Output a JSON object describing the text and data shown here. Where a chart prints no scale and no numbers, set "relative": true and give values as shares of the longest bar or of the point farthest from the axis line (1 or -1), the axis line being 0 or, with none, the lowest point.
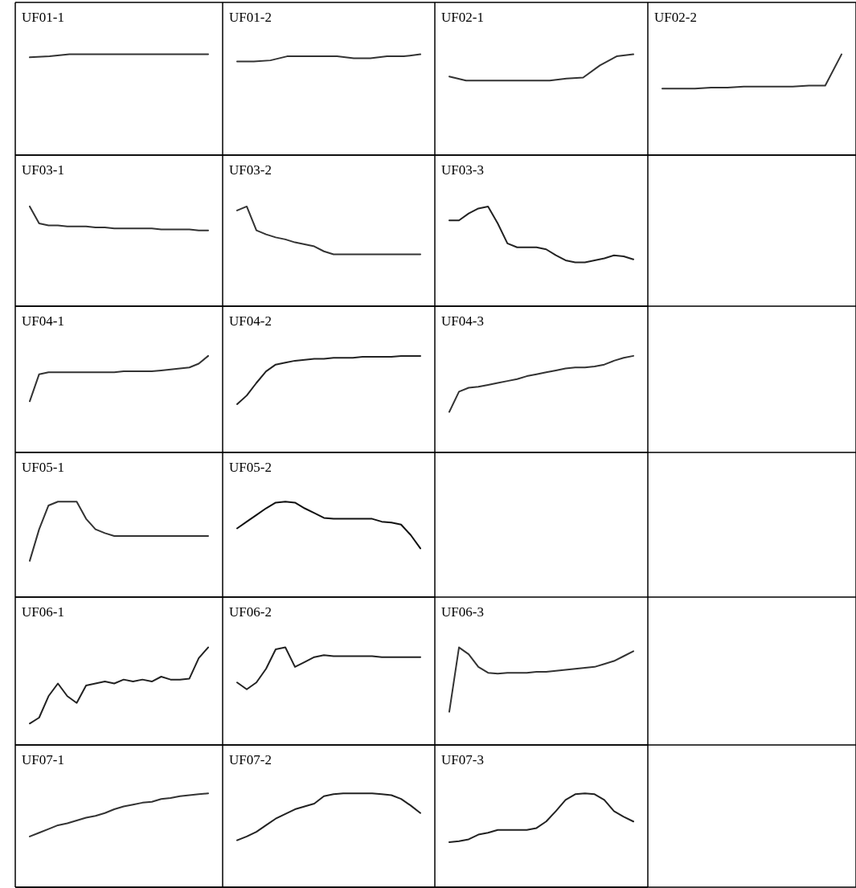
{
  "chart_data": [
    {
      "type": "line",
      "title": "UF01-1",
      "relative": true,
      "color": "#333333",
      "categories": [
        null,
        null,
        null,
        null,
        null,
        null,
        null,
        null,
        null,
        null
      ],
      "values": [
        0.97,
        0.98,
        1,
        1,
        1,
        1,
        1,
        1,
        1,
        1
      ]
    },
    {
      "type": "line",
      "title": "UF01-2",
      "relative": true,
      "color": "#333333",
      "categories": [
        null,
        null,
        null,
        null,
        null,
        null,
        null,
        null,
        null,
        null,
        null,
        null
      ],
      "values": [
        0.93,
        0.93,
        0.94,
        0.98,
        0.98,
        0.98,
        0.98,
        0.96,
        0.96,
        0.98,
        0.98,
        1
      ]
    },
    {
      "type": "line",
      "title": "UF02-1",
      "relative": true,
      "color": "#333333",
      "categories": [
        null,
        null,
        null,
        null,
        null,
        null,
        null,
        null,
        null,
        null,
        null,
        null
      ],
      "values": [
        0.78,
        0.74,
        0.74,
        0.74,
        0.74,
        0.74,
        0.74,
        0.76,
        0.77,
        0.89,
        0.98,
        1
      ]
    },
    {
      "type": "line",
      "title": "UF02-2",
      "relative": true,
      "color": "#333333",
      "categories": [
        null,
        null,
        null,
        null,
        null,
        null,
        null,
        null,
        null,
        null,
        null,
        null
      ],
      "values": [
        0.66,
        0.66,
        0.66,
        0.67,
        0.67,
        0.68,
        0.68,
        0.68,
        0.68,
        0.69,
        0.69,
        1
      ]
    },
    {
      "type": "line",
      "title": "UF03-1",
      "relative": true,
      "color": "#333333",
      "categories": [
        null,
        null,
        null,
        null,
        null,
        null,
        null,
        null,
        null,
        null,
        null,
        null,
        null,
        null,
        null,
        null,
        null,
        null,
        null,
        null
      ],
      "values": [
        1,
        0.83,
        0.81,
        0.81,
        0.8,
        0.8,
        0.8,
        0.79,
        0.79,
        0.78,
        0.78,
        0.78,
        0.78,
        0.78,
        0.77,
        0.77,
        0.77,
        0.77,
        0.76,
        0.76
      ]
    },
    {
      "type": "line",
      "title": "UF03-2",
      "relative": true,
      "color": "#333333",
      "categories": [
        null,
        null,
        null,
        null,
        null,
        null,
        null,
        null,
        null,
        null,
        null,
        null,
        null,
        null,
        null,
        null,
        null,
        null,
        null,
        null
      ],
      "values": [
        0.96,
        1,
        0.76,
        0.72,
        0.69,
        0.67,
        0.64,
        0.62,
        0.6,
        0.55,
        0.52,
        0.52,
        0.52,
        0.52,
        0.52,
        0.52,
        0.52,
        0.52,
        0.52,
        0.52
      ]
    },
    {
      "type": "line",
      "title": "UF03-3",
      "relative": true,
      "color": "#222222",
      "categories": [
        null,
        null,
        null,
        null,
        null,
        null,
        null,
        null,
        null,
        null,
        null,
        null,
        null,
        null,
        null,
        null,
        null,
        null,
        null,
        null
      ],
      "values": [
        0.86,
        0.86,
        0.93,
        0.98,
        1,
        0.83,
        0.63,
        0.59,
        0.59,
        0.59,
        0.57,
        0.51,
        0.46,
        0.44,
        0.44,
        0.46,
        0.48,
        0.51,
        0.5,
        0.47
      ]
    },
    {
      "type": "line",
      "title": "UF04-1",
      "relative": true,
      "color": "#333333",
      "categories": [
        null,
        null,
        null,
        null,
        null,
        null,
        null,
        null,
        null,
        null,
        null,
        null,
        null,
        null,
        null,
        null,
        null,
        null,
        null,
        null
      ],
      "values": [
        0.53,
        0.81,
        0.83,
        0.83,
        0.83,
        0.83,
        0.83,
        0.83,
        0.83,
        0.83,
        0.84,
        0.84,
        0.84,
        0.84,
        0.85,
        0.86,
        0.87,
        0.88,
        0.92,
        1
      ]
    },
    {
      "type": "line",
      "title": "UF04-2",
      "relative": true,
      "color": "#222222",
      "categories": [
        null,
        null,
        null,
        null,
        null,
        null,
        null,
        null,
        null,
        null,
        null,
        null,
        null,
        null,
        null,
        null,
        null,
        null,
        null,
        null
      ],
      "values": [
        0.5,
        0.59,
        0.72,
        0.84,
        0.91,
        0.93,
        0.95,
        0.96,
        0.97,
        0.97,
        0.98,
        0.98,
        0.98,
        0.99,
        0.99,
        0.99,
        0.99,
        1,
        1,
        1
      ]
    },
    {
      "type": "line",
      "title": "UF04-3",
      "relative": true,
      "color": "#333333",
      "categories": [
        null,
        null,
        null,
        null,
        null,
        null,
        null,
        null,
        null,
        null,
        null,
        null,
        null,
        null,
        null,
        null,
        null,
        null,
        null,
        null
      ],
      "values": [
        0.42,
        0.63,
        0.67,
        0.68,
        0.7,
        0.72,
        0.74,
        0.76,
        0.79,
        0.81,
        0.83,
        0.85,
        0.87,
        0.88,
        0.88,
        0.89,
        0.91,
        0.95,
        0.98,
        1
      ]
    },
    {
      "type": "line",
      "title": "UF05-1",
      "relative": true,
      "color": "#333333",
      "categories": [
        null,
        null,
        null,
        null,
        null,
        null,
        null,
        null,
        null,
        null,
        null,
        null,
        null,
        null,
        null,
        null,
        null,
        null,
        null,
        null
      ],
      "values": [
        0.38,
        0.71,
        0.96,
        1,
        1,
        1,
        0.82,
        0.71,
        0.67,
        0.64,
        0.64,
        0.64,
        0.64,
        0.64,
        0.64,
        0.64,
        0.64,
        0.64,
        0.64,
        0.64
      ]
    },
    {
      "type": "line",
      "title": "UF05-2",
      "relative": true,
      "color": "#111111",
      "categories": [
        null,
        null,
        null,
        null,
        null,
        null,
        null,
        null,
        null,
        null,
        null,
        null,
        null,
        null,
        null,
        null,
        null,
        null,
        null,
        null
      ],
      "values": [
        0.72,
        0.79,
        0.86,
        0.93,
        0.99,
        1,
        0.99,
        0.93,
        0.88,
        0.83,
        0.82,
        0.82,
        0.82,
        0.82,
        0.82,
        0.79,
        0.78,
        0.76,
        0.65,
        0.51
      ]
    },
    {
      "type": "line",
      "title": "UF06-1",
      "relative": true,
      "color": "#222222",
      "categories": [
        null,
        null,
        null,
        null,
        null,
        null,
        null,
        null,
        null,
        null,
        null,
        null,
        null,
        null,
        null,
        null,
        null,
        null,
        null,
        null
      ],
      "values": [
        0.22,
        0.28,
        0.5,
        0.63,
        0.5,
        0.43,
        0.61,
        0.63,
        0.65,
        0.63,
        0.67,
        0.65,
        0.67,
        0.65,
        0.7,
        0.67,
        0.67,
        0.68,
        0.89,
        1
      ]
    },
    {
      "type": "line",
      "title": "UF06-2",
      "relative": true,
      "color": "#222222",
      "categories": [
        null,
        null,
        null,
        null,
        null,
        null,
        null,
        null,
        null,
        null,
        null,
        null,
        null,
        null,
        null,
        null,
        null,
        null,
        null,
        null
      ],
      "values": [
        0.64,
        0.57,
        0.64,
        0.78,
        0.98,
        1,
        0.8,
        0.85,
        0.9,
        0.92,
        0.91,
        0.91,
        0.91,
        0.91,
        0.91,
        0.9,
        0.9,
        0.9,
        0.9,
        0.9
      ]
    },
    {
      "type": "line",
      "title": "UF06-3",
      "relative": true,
      "color": "#333333",
      "categories": [
        null,
        null,
        null,
        null,
        null,
        null,
        null,
        null,
        null,
        null,
        null,
        null,
        null,
        null,
        null,
        null,
        null,
        null,
        null,
        null
      ],
      "values": [
        0.34,
        1,
        0.93,
        0.8,
        0.74,
        0.73,
        0.74,
        0.74,
        0.74,
        0.75,
        0.75,
        0.76,
        0.77,
        0.78,
        0.79,
        0.8,
        0.83,
        0.86,
        0.91,
        0.96
      ]
    },
    {
      "type": "line",
      "title": "UF07-1",
      "relative": true,
      "color": "#333333",
      "categories": [
        null,
        null,
        null,
        null,
        null,
        null,
        null,
        null,
        null,
        null,
        null,
        null,
        null,
        null,
        null,
        null,
        null,
        null,
        null,
        null
      ],
      "values": [
        0.54,
        0.58,
        0.62,
        0.66,
        0.68,
        0.71,
        0.74,
        0.76,
        0.79,
        0.83,
        0.86,
        0.88,
        0.9,
        0.91,
        0.94,
        0.95,
        0.97,
        0.98,
        0.99,
        1
      ]
    },
    {
      "type": "line",
      "title": "UF07-2",
      "relative": true,
      "color": "#222222",
      "categories": [
        null,
        null,
        null,
        null,
        null,
        null,
        null,
        null,
        null,
        null,
        null,
        null,
        null,
        null,
        null,
        null,
        null,
        null,
        null,
        null
      ],
      "values": [
        0.5,
        0.54,
        0.59,
        0.66,
        0.73,
        0.78,
        0.83,
        0.86,
        0.89,
        0.97,
        0.99,
        1,
        1,
        1,
        1,
        0.99,
        0.98,
        0.94,
        0.87,
        0.79
      ]
    },
    {
      "type": "line",
      "title": "UF07-3",
      "relative": true,
      "color": "#222222",
      "categories": [
        null,
        null,
        null,
        null,
        null,
        null,
        null,
        null,
        null,
        null,
        null,
        null,
        null,
        null,
        null,
        null,
        null,
        null,
        null,
        null
      ],
      "values": [
        0.48,
        0.49,
        0.51,
        0.56,
        0.58,
        0.61,
        0.61,
        0.61,
        0.61,
        0.63,
        0.7,
        0.81,
        0.93,
        0.99,
        1,
        0.99,
        0.93,
        0.81,
        0.75,
        0.7
      ]
    }
  ]
}
